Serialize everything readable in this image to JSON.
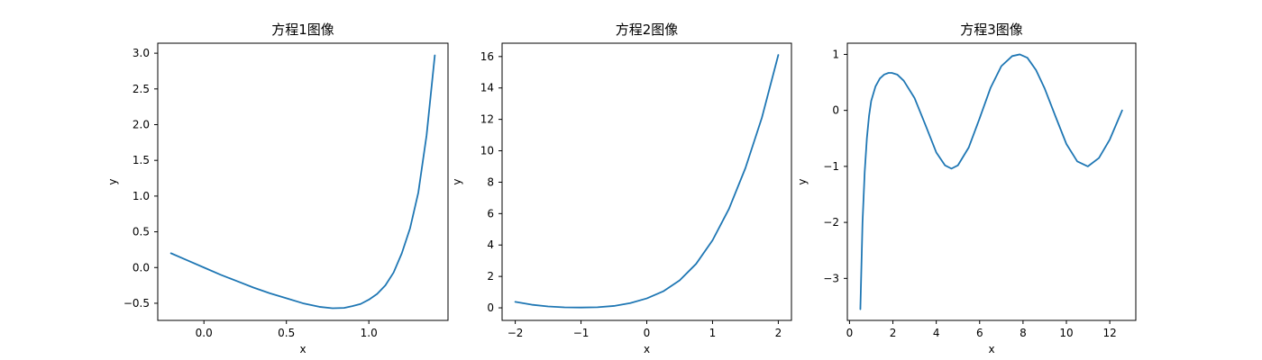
{
  "figure": {
    "background": "#ffffff",
    "line_color": "#1f77b4"
  },
  "chart_data": [
    {
      "type": "line",
      "title": "方程1图像",
      "xlabel": "x",
      "ylabel": "y",
      "xlim": [
        -0.28,
        1.48
      ],
      "ylim": [
        -0.74,
        3.14
      ],
      "xticks": [
        {
          "value": 0.0,
          "label": "0.0"
        },
        {
          "value": 0.5,
          "label": "0.5"
        },
        {
          "value": 1.0,
          "label": "1.0"
        }
      ],
      "yticks": [
        {
          "value": -0.5,
          "label": "−0.5"
        },
        {
          "value": 0.0,
          "label": "0.0"
        },
        {
          "value": 0.5,
          "label": "0.5"
        },
        {
          "value": 1.0,
          "label": "1.0"
        },
        {
          "value": 1.5,
          "label": "1.5"
        },
        {
          "value": 2.0,
          "label": "2.0"
        },
        {
          "value": 2.5,
          "label": "2.5"
        },
        {
          "value": 3.0,
          "label": "3.0"
        }
      ],
      "grid": false,
      "series": [
        {
          "color": "#1f77b4",
          "x": [
            -0.2,
            -0.1,
            0.0,
            0.1,
            0.2,
            0.3,
            0.4,
            0.5,
            0.6,
            0.7,
            0.78,
            0.85,
            0.9,
            0.95,
            1.0,
            1.05,
            1.1,
            1.15,
            1.2,
            1.25,
            1.3,
            1.35,
            1.4
          ],
          "y": [
            0.2,
            0.1,
            0.0,
            -0.1,
            -0.19,
            -0.28,
            -0.36,
            -0.43,
            -0.5,
            -0.55,
            -0.57,
            -0.565,
            -0.54,
            -0.51,
            -0.45,
            -0.37,
            -0.25,
            -0.07,
            0.2,
            0.55,
            1.05,
            1.85,
            2.97
          ]
        }
      ]
    },
    {
      "type": "line",
      "title": "方程2图像",
      "xlabel": "x",
      "ylabel": "y",
      "xlim": [
        -2.2,
        2.2
      ],
      "ylim": [
        -0.8,
        16.85
      ],
      "xticks": [
        {
          "value": -2,
          "label": "−2"
        },
        {
          "value": -1,
          "label": "−1"
        },
        {
          "value": 0,
          "label": "0"
        },
        {
          "value": 1,
          "label": "1"
        },
        {
          "value": 2,
          "label": "2"
        }
      ],
      "yticks": [
        {
          "value": 0,
          "label": "0"
        },
        {
          "value": 2,
          "label": "2"
        },
        {
          "value": 4,
          "label": "4"
        },
        {
          "value": 6,
          "label": "6"
        },
        {
          "value": 8,
          "label": "8"
        },
        {
          "value": 10,
          "label": "10"
        },
        {
          "value": 12,
          "label": "12"
        },
        {
          "value": 14,
          "label": "14"
        },
        {
          "value": 16,
          "label": "16"
        }
      ],
      "grid": false,
      "series": [
        {
          "color": "#1f77b4",
          "x": [
            -2.0,
            -1.75,
            -1.5,
            -1.25,
            -1.0,
            -0.75,
            -0.5,
            -0.25,
            0.0,
            0.25,
            0.5,
            0.75,
            1.0,
            1.25,
            1.5,
            1.75,
            2.0
          ],
          "y": [
            0.38,
            0.2,
            0.09,
            0.03,
            0.02,
            0.04,
            0.12,
            0.3,
            0.6,
            1.05,
            1.75,
            2.8,
            4.3,
            6.3,
            8.9,
            12.1,
            16.1
          ]
        }
      ]
    },
    {
      "type": "line",
      "title": "方程3图像",
      "xlabel": "x",
      "ylabel": "y",
      "xlim": [
        -0.1,
        13.2
      ],
      "ylim": [
        -3.75,
        1.2
      ],
      "xticks": [
        {
          "value": 0,
          "label": "0"
        },
        {
          "value": 2,
          "label": "2"
        },
        {
          "value": 4,
          "label": "4"
        },
        {
          "value": 6,
          "label": "6"
        },
        {
          "value": 8,
          "label": "8"
        },
        {
          "value": 10,
          "label": "10"
        },
        {
          "value": 12,
          "label": "12"
        }
      ],
      "yticks": [
        {
          "value": -3,
          "label": "−3"
        },
        {
          "value": -2,
          "label": "−2"
        },
        {
          "value": -1,
          "label": "−1"
        },
        {
          "value": 0,
          "label": "0"
        },
        {
          "value": 1,
          "label": "1"
        }
      ],
      "grid": false,
      "series": [
        {
          "color": "#1f77b4",
          "x": [
            0.5,
            0.6,
            0.7,
            0.8,
            0.9,
            1.0,
            1.2,
            1.4,
            1.6,
            1.8,
            1.95,
            2.2,
            2.5,
            3.0,
            3.5,
            4.0,
            4.4,
            4.7,
            5.0,
            5.5,
            6.0,
            6.5,
            7.0,
            7.5,
            7.85,
            8.2,
            8.6,
            9.0,
            9.5,
            10.0,
            10.5,
            10.99,
            11.5,
            12.0,
            12.57
          ],
          "y": [
            -3.55,
            -2.0,
            -1.1,
            -0.5,
            -0.1,
            0.17,
            0.43,
            0.57,
            0.64,
            0.67,
            0.67,
            0.64,
            0.53,
            0.22,
            -0.26,
            -0.75,
            -0.98,
            -1.04,
            -0.98,
            -0.66,
            -0.14,
            0.4,
            0.79,
            0.97,
            1.0,
            0.94,
            0.72,
            0.39,
            -0.11,
            -0.6,
            -0.91,
            -1.0,
            -0.85,
            -0.52,
            0.0
          ]
        }
      ]
    }
  ]
}
